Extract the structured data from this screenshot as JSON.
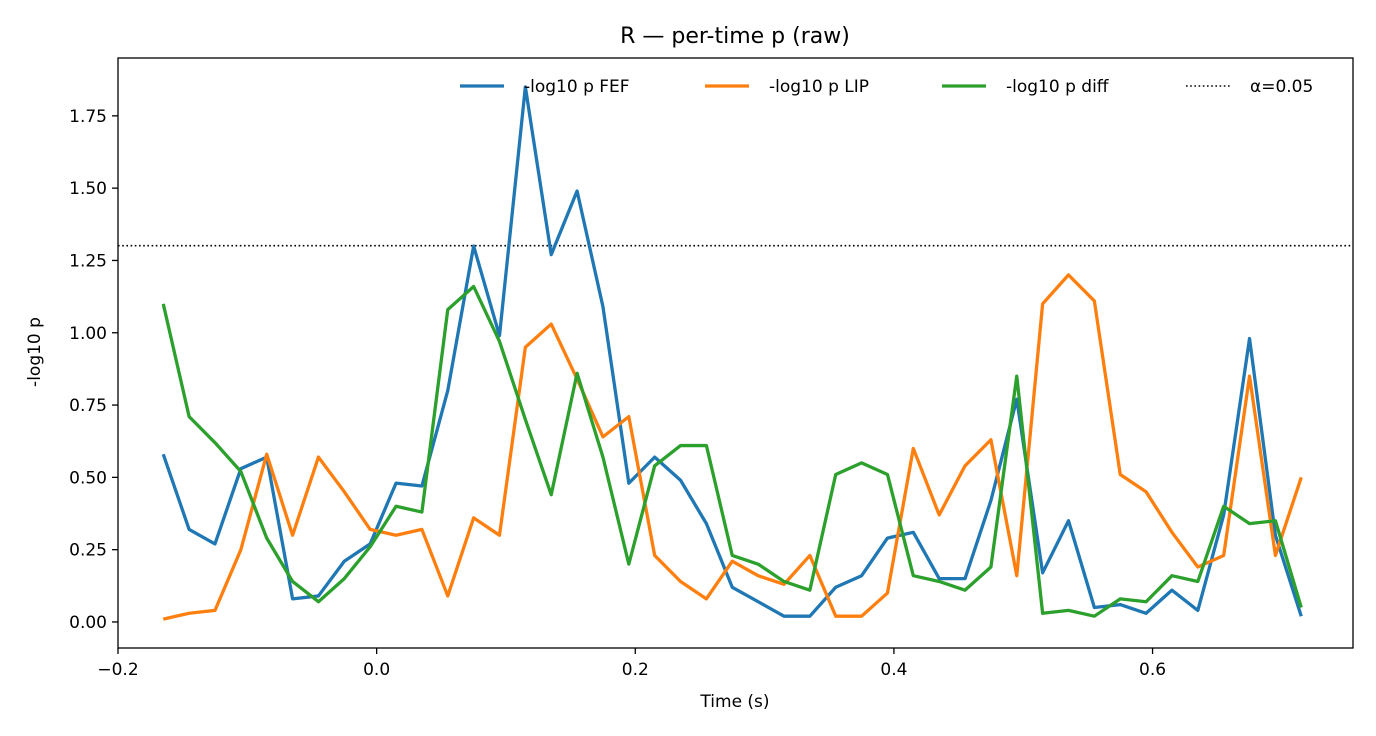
{
  "chart_data": {
    "type": "line",
    "title": "R — per-time p (raw)",
    "xlabel": "Time (s)",
    "ylabel": "-log10 p",
    "xlim": [
      -0.2,
      0.755
    ],
    "ylim": [
      -0.09,
      1.95
    ],
    "xticks": [
      -0.2,
      0.0,
      0.2,
      0.4,
      0.6
    ],
    "xtick_labels": [
      "−0.2",
      "0.0",
      "0.2",
      "0.4",
      "0.6"
    ],
    "yticks": [
      0.0,
      0.25,
      0.5,
      0.75,
      1.0,
      1.25,
      1.5,
      1.75
    ],
    "ytick_labels": [
      "0.00",
      "0.25",
      "0.50",
      "0.75",
      "1.00",
      "1.25",
      "1.50",
      "1.75"
    ],
    "grid": false,
    "legend_position": "top-right",
    "x": [
      -0.165,
      -0.145,
      -0.125,
      -0.105,
      -0.085,
      -0.065,
      -0.045,
      -0.025,
      -0.005,
      0.015,
      0.035,
      0.055,
      0.075,
      0.095,
      0.115,
      0.135,
      0.155,
      0.175,
      0.195,
      0.215,
      0.235,
      0.255,
      0.275,
      0.295,
      0.315,
      0.335,
      0.355,
      0.375,
      0.395,
      0.415,
      0.435,
      0.455,
      0.475,
      0.495,
      0.515,
      0.535,
      0.555,
      0.575,
      0.595,
      0.615,
      0.635,
      0.655,
      0.675,
      0.695,
      0.715
    ],
    "series": [
      {
        "name": "-log10 p FEF",
        "color": "#1f77b4",
        "values": [
          0.58,
          0.32,
          0.27,
          0.53,
          0.57,
          0.08,
          0.09,
          0.21,
          0.27,
          0.48,
          0.47,
          0.8,
          1.3,
          0.99,
          1.85,
          1.27,
          1.49,
          1.09,
          0.48,
          0.57,
          0.49,
          0.34,
          0.12,
          0.07,
          0.02,
          0.02,
          0.12,
          0.16,
          0.29,
          0.31,
          0.15,
          0.15,
          0.42,
          0.77,
          0.17,
          0.35,
          0.05,
          0.06,
          0.03,
          0.11,
          0.04,
          0.37,
          0.98,
          0.3,
          0.02
        ]
      },
      {
        "name": "-log10 p LIP",
        "color": "#ff7f0e",
        "values": [
          0.01,
          0.03,
          0.04,
          0.25,
          0.58,
          0.3,
          0.57,
          0.45,
          0.32,
          0.3,
          0.32,
          0.09,
          0.36,
          0.3,
          0.95,
          1.03,
          0.84,
          0.64,
          0.71,
          0.23,
          0.14,
          0.08,
          0.21,
          0.16,
          0.13,
          0.23,
          0.02,
          0.02,
          0.1,
          0.6,
          0.37,
          0.54,
          0.63,
          0.16,
          1.1,
          1.2,
          1.11,
          0.51,
          0.45,
          0.31,
          0.19,
          0.23,
          0.85,
          0.23,
          0.5
        ]
      },
      {
        "name": "-log10 p diff",
        "color": "#2ca02c",
        "values": [
          1.1,
          0.71,
          0.62,
          0.52,
          0.29,
          0.14,
          0.07,
          0.15,
          0.26,
          0.4,
          0.38,
          1.08,
          1.16,
          0.97,
          0.7,
          0.44,
          0.86,
          0.57,
          0.2,
          0.54,
          0.61,
          0.61,
          0.23,
          0.2,
          0.14,
          0.11,
          0.51,
          0.55,
          0.51,
          0.16,
          0.14,
          0.11,
          0.19,
          0.85,
          0.03,
          0.04,
          0.02,
          0.08,
          0.07,
          0.16,
          0.14,
          0.4,
          0.34,
          0.35,
          0.05
        ]
      }
    ],
    "reference_line": {
      "name": "α=0.05",
      "y": 1.301,
      "color": "#000000",
      "style": "dotted"
    }
  }
}
